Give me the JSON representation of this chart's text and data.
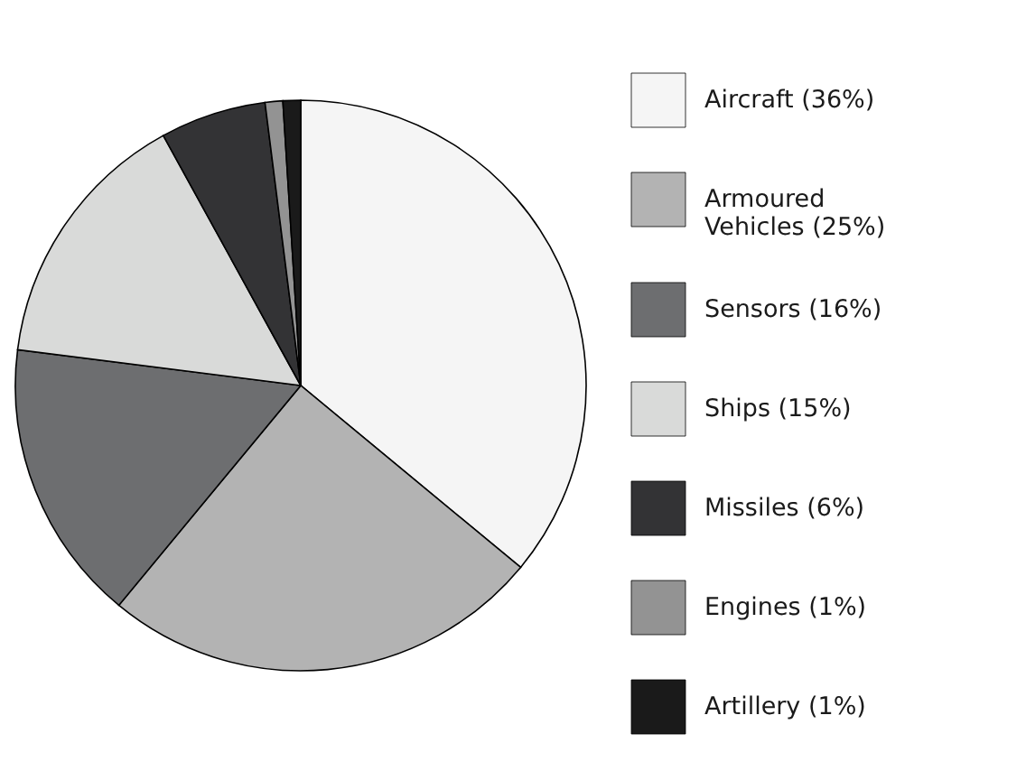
{
  "chart_data": {
    "type": "pie",
    "categories": [
      "Aircraft",
      "Armoured Vehicles",
      "Sensors",
      "Ships",
      "Missiles",
      "Engines",
      "Artillery"
    ],
    "values": [
      36,
      25,
      16,
      15,
      6,
      1,
      1
    ],
    "value_labels": [
      "(36%)",
      "(25%)",
      "(16%)",
      "(15%)",
      "(6%)",
      "(1%)",
      "(1%)"
    ],
    "colors": [
      "#f5f5f5",
      "#b3b3b3",
      "#6d6e70",
      "#d9dad9",
      "#333335",
      "#939393",
      "#1a1a1a"
    ],
    "legend": "right"
  }
}
